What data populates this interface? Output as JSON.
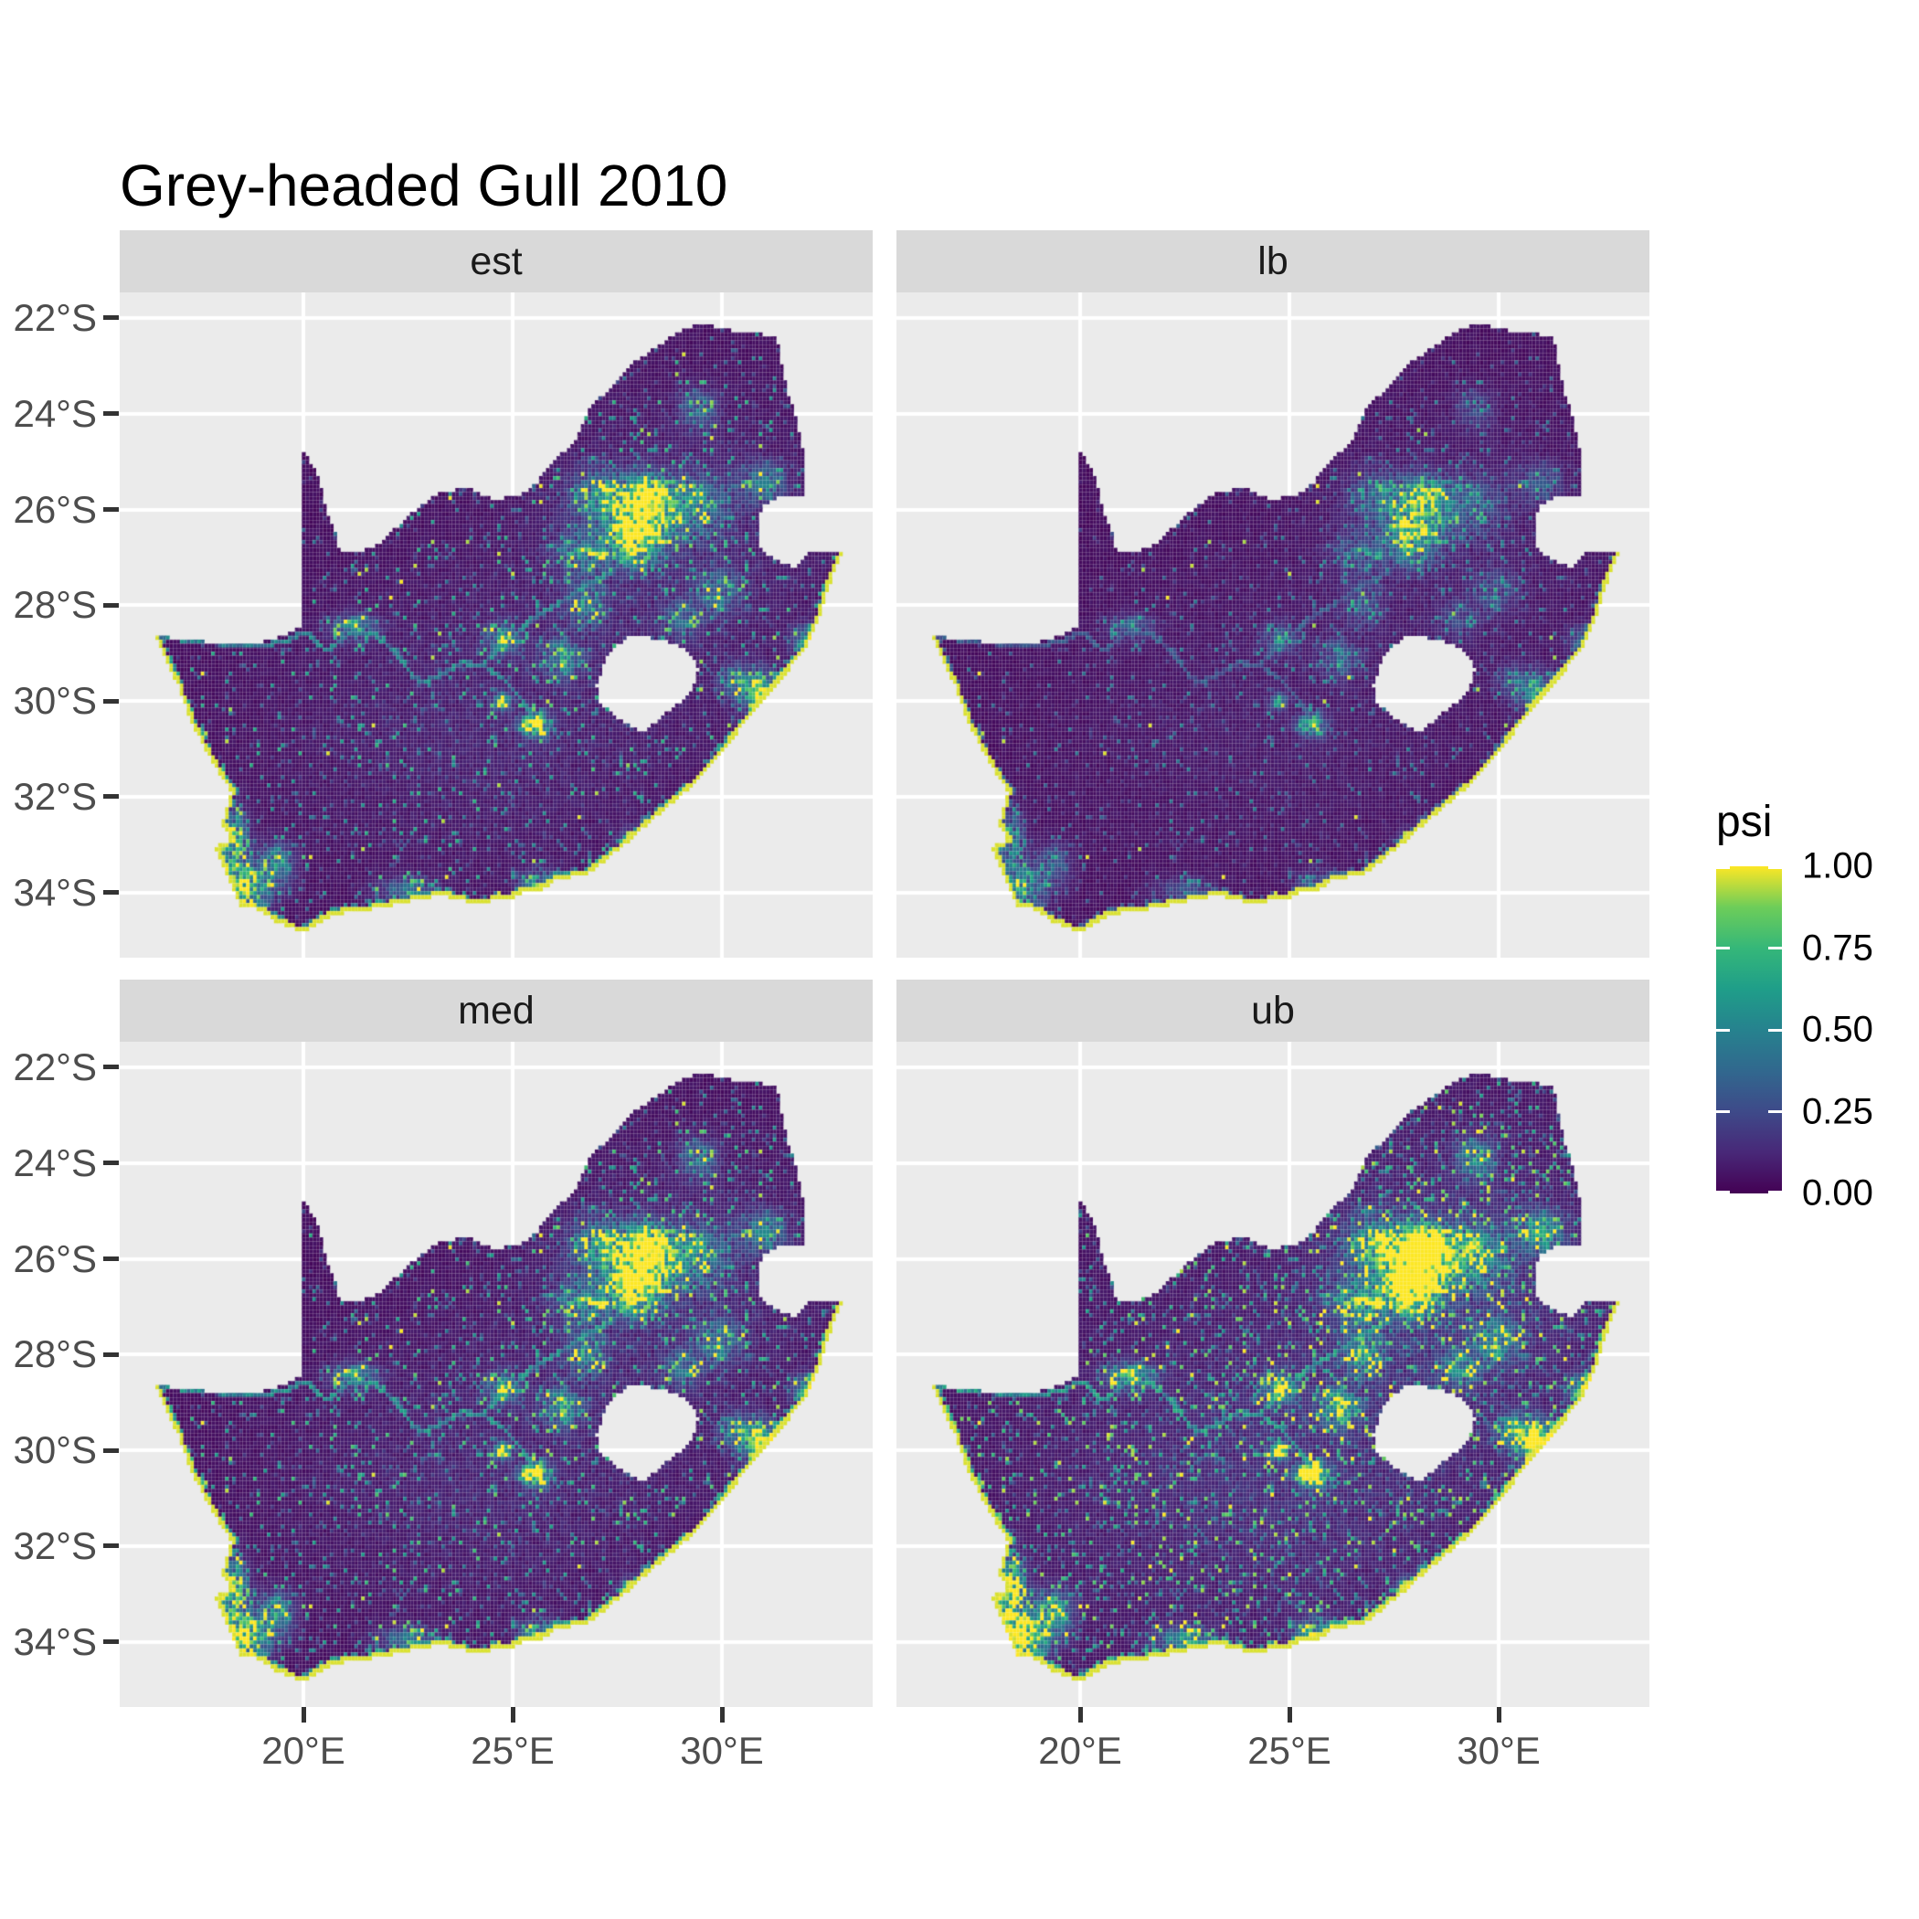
{
  "title": "Grey-headed Gull 2010",
  "facets": [
    {
      "id": "est",
      "label": "est"
    },
    {
      "id": "lb",
      "label": "lb"
    },
    {
      "id": "med",
      "label": "med"
    },
    {
      "id": "ub",
      "label": "ub"
    }
  ],
  "axes": {
    "x": {
      "ticks": [
        {
          "lon": 20,
          "label": "20°E"
        },
        {
          "lon": 25,
          "label": "25°E"
        },
        {
          "lon": 30,
          "label": "30°E"
        }
      ]
    },
    "y": {
      "ticks": [
        {
          "lat": -22,
          "label": "22°S"
        },
        {
          "lat": -24,
          "label": "24°S"
        },
        {
          "lat": -26,
          "label": "26°S"
        },
        {
          "lat": -28,
          "label": "28°S"
        },
        {
          "lat": -30,
          "label": "30°S"
        },
        {
          "lat": -32,
          "label": "32°S"
        },
        {
          "lat": -34,
          "label": "34°S"
        }
      ]
    }
  },
  "legend": {
    "title": "psi",
    "breaks": [
      {
        "value": 1.0,
        "label": "1.00"
      },
      {
        "value": 0.75,
        "label": "0.75"
      },
      {
        "value": 0.5,
        "label": "0.50"
      },
      {
        "value": 0.25,
        "label": "0.25"
      },
      {
        "value": 0.0,
        "label": "0.00"
      }
    ]
  },
  "colors": {
    "background": "#ffffff",
    "panel_background": "#ebebeb",
    "strip_background": "#d9d9d9",
    "gridline": "#ffffff",
    "axis_text": "#4d4d4d",
    "tick_mark": "#333333",
    "title_text": "#000000"
  },
  "chart_data": {
    "type": "heatmap",
    "subtype": "faceted-raster-map",
    "title": "Grey-headed Gull 2010",
    "region": "South Africa",
    "variable": "psi",
    "value_range": [
      0,
      1
    ],
    "facet_values": [
      "est",
      "lb",
      "med",
      "ub"
    ],
    "x_ticks_lon": [
      20,
      25,
      30
    ],
    "y_ticks_lat": [
      -22,
      -24,
      -26,
      -28,
      -30,
      -32,
      -34
    ],
    "lon_range": [
      15.61,
      33.64
    ],
    "lat_range": [
      -35.36,
      -21.47
    ],
    "legend_breaks": [
      0.0,
      0.25,
      0.5,
      0.75,
      1.0
    ],
    "colormap": "viridis",
    "colormap_stops": [
      {
        "t": 0.0,
        "c": "#440154"
      },
      {
        "t": 0.125,
        "c": "#482878"
      },
      {
        "t": 0.25,
        "c": "#3e4a89"
      },
      {
        "t": 0.375,
        "c": "#31688e"
      },
      {
        "t": 0.5,
        "c": "#26828e"
      },
      {
        "t": 0.625,
        "c": "#1f9e89"
      },
      {
        "t": 0.75,
        "c": "#35b779"
      },
      {
        "t": 0.875,
        "c": "#6dcd59"
      },
      {
        "t": 1.0,
        "c": "#fde725"
      }
    ],
    "grid": {
      "cell_deg": 0.08333,
      "lon_min": 16.38,
      "lon_max": 33.0,
      "lat_south": -35.0,
      "lat_north": -22.05
    },
    "outline": [
      [
        16.45,
        -28.63
      ],
      [
        17.2,
        -28.72
      ],
      [
        17.9,
        -28.78
      ],
      [
        18.6,
        -28.84
      ],
      [
        19.3,
        -28.72
      ],
      [
        19.98,
        -28.43
      ],
      [
        19.98,
        -24.77
      ],
      [
        20.3,
        -25.2
      ],
      [
        20.55,
        -26.0
      ],
      [
        20.8,
        -26.6
      ],
      [
        20.85,
        -26.9
      ],
      [
        21.4,
        -26.88
      ],
      [
        21.9,
        -26.67
      ],
      [
        22.3,
        -26.3
      ],
      [
        22.75,
        -25.95
      ],
      [
        23.25,
        -25.65
      ],
      [
        23.9,
        -25.55
      ],
      [
        24.55,
        -25.78
      ],
      [
        25.1,
        -25.73
      ],
      [
        25.55,
        -25.48
      ],
      [
        26.0,
        -24.95
      ],
      [
        26.45,
        -24.63
      ],
      [
        26.85,
        -23.9
      ],
      [
        27.35,
        -23.42
      ],
      [
        27.95,
        -22.9
      ],
      [
        28.55,
        -22.55
      ],
      [
        29.1,
        -22.2
      ],
      [
        29.55,
        -22.13
      ],
      [
        30.1,
        -22.25
      ],
      [
        30.7,
        -22.3
      ],
      [
        31.3,
        -22.41
      ],
      [
        31.55,
        -23.5
      ],
      [
        31.8,
        -24.2
      ],
      [
        31.97,
        -24.9
      ],
      [
        31.97,
        -25.75
      ],
      [
        31.3,
        -25.75
      ],
      [
        30.95,
        -25.95
      ],
      [
        30.85,
        -26.35
      ],
      [
        30.9,
        -26.78
      ],
      [
        31.25,
        -27.05
      ],
      [
        31.75,
        -27.2
      ],
      [
        32.1,
        -26.9
      ],
      [
        32.89,
        -26.86
      ],
      [
        32.55,
        -27.6
      ],
      [
        32.3,
        -28.3
      ],
      [
        32.0,
        -28.9
      ],
      [
        31.4,
        -29.55
      ],
      [
        30.85,
        -30.1
      ],
      [
        30.15,
        -30.9
      ],
      [
        29.3,
        -31.75
      ],
      [
        28.5,
        -32.35
      ],
      [
        27.6,
        -33.05
      ],
      [
        26.8,
        -33.6
      ],
      [
        26.0,
        -33.75
      ],
      [
        25.65,
        -33.95
      ],
      [
        25.3,
        -33.95
      ],
      [
        24.9,
        -34.15
      ],
      [
        24.0,
        -34.2
      ],
      [
        23.3,
        -34.05
      ],
      [
        22.4,
        -34.2
      ],
      [
        21.6,
        -34.35
      ],
      [
        20.7,
        -34.45
      ],
      [
        20.0,
        -34.82
      ],
      [
        19.35,
        -34.6
      ],
      [
        18.95,
        -34.35
      ],
      [
        18.5,
        -34.3
      ],
      [
        18.3,
        -33.9
      ],
      [
        18.05,
        -33.35
      ],
      [
        17.9,
        -33.05
      ],
      [
        18.28,
        -32.88
      ],
      [
        18.05,
        -32.55
      ],
      [
        18.28,
        -31.9
      ],
      [
        17.85,
        -31.3
      ],
      [
        17.35,
        -30.5
      ],
      [
        17.0,
        -29.65
      ],
      [
        16.7,
        -29.15
      ]
    ],
    "coastal_from": 42,
    "lesotho_hole": [
      [
        27.0,
        -29.65
      ],
      [
        27.3,
        -28.95
      ],
      [
        27.8,
        -28.63
      ],
      [
        28.6,
        -28.7
      ],
      [
        29.15,
        -28.93
      ],
      [
        29.45,
        -29.3
      ],
      [
        29.25,
        -29.85
      ],
      [
        28.75,
        -30.2
      ],
      [
        28.1,
        -30.65
      ],
      [
        27.55,
        -30.4
      ],
      [
        27.05,
        -30.0
      ]
    ],
    "rivers": [
      [
        [
          16.5,
          -28.62
        ],
        [
          17.3,
          -28.74
        ],
        [
          18.1,
          -28.8
        ],
        [
          18.9,
          -28.86
        ],
        [
          19.6,
          -28.74
        ],
        [
          20.05,
          -28.55
        ],
        [
          20.55,
          -28.95
        ],
        [
          21.1,
          -28.6
        ],
        [
          21.7,
          -28.6
        ],
        [
          22.2,
          -29.0
        ],
        [
          22.6,
          -29.45
        ],
        [
          22.85,
          -29.6
        ],
        [
          23.3,
          -29.45
        ],
        [
          23.8,
          -29.2
        ],
        [
          24.3,
          -29.25
        ],
        [
          24.8,
          -29.55
        ],
        [
          25.2,
          -29.95
        ],
        [
          25.5,
          -30.35
        ],
        [
          25.6,
          -30.6
        ]
      ],
      [
        [
          24.3,
          -29.2
        ],
        [
          24.9,
          -28.75
        ],
        [
          25.5,
          -28.25
        ],
        [
          26.1,
          -27.95
        ],
        [
          26.75,
          -27.6
        ],
        [
          27.35,
          -27.3
        ],
        [
          27.9,
          -26.85
        ]
      ]
    ],
    "hotspots": [
      [
        28.0,
        -26.15,
        0.5,
        0.4,
        1.5
      ],
      [
        28.25,
        -25.72,
        0.32,
        0.26,
        1.1
      ],
      [
        27.9,
        -26.75,
        0.38,
        0.3,
        0.9
      ],
      [
        27.1,
        -25.65,
        0.5,
        0.35,
        0.55
      ],
      [
        29.25,
        -25.9,
        0.55,
        0.4,
        0.6
      ],
      [
        26.65,
        -26.9,
        0.4,
        0.32,
        0.55
      ],
      [
        26.75,
        -28.0,
        0.3,
        0.28,
        0.5
      ],
      [
        26.2,
        -29.1,
        0.28,
        0.24,
        0.75
      ],
      [
        24.75,
        -28.72,
        0.25,
        0.22,
        0.65
      ],
      [
        25.52,
        -30.5,
        0.22,
        0.15,
        1.6
      ],
      [
        24.75,
        -30.0,
        0.15,
        0.12,
        0.9
      ],
      [
        18.6,
        -33.9,
        0.4,
        0.3,
        1.1
      ],
      [
        18.35,
        -32.95,
        0.22,
        0.45,
        0.9
      ],
      [
        19.35,
        -33.4,
        0.3,
        0.3,
        0.6
      ],
      [
        30.9,
        -29.85,
        0.3,
        0.3,
        0.9
      ],
      [
        30.35,
        -29.6,
        0.25,
        0.22,
        0.6
      ],
      [
        32.0,
        -28.75,
        0.22,
        0.22,
        0.6
      ],
      [
        25.6,
        -33.9,
        0.28,
        0.22,
        0.7
      ],
      [
        27.85,
        -33.0,
        0.22,
        0.2,
        0.6
      ],
      [
        22.45,
        -33.95,
        0.45,
        0.18,
        0.5
      ],
      [
        21.2,
        -28.45,
        0.35,
        0.18,
        0.6
      ],
      [
        31.0,
        -25.45,
        0.35,
        0.28,
        0.55
      ],
      [
        29.45,
        -23.9,
        0.3,
        0.28,
        0.45
      ],
      [
        29.95,
        -27.7,
        0.35,
        0.3,
        0.45
      ],
      [
        29.1,
        -28.25,
        0.3,
        0.25,
        0.4
      ],
      [
        24.5,
        -30.5,
        3.5,
        2.2,
        0.1
      ],
      [
        29.0,
        -26.5,
        2.5,
        2.0,
        0.12
      ]
    ],
    "facet_params": {
      "est": {
        "gain": 1.0,
        "speckle": 0.025
      },
      "lb": {
        "gain": 0.62,
        "speckle": 0.005
      },
      "med": {
        "gain": 1.1,
        "speckle": 0.04
      },
      "ub": {
        "gain": 1.42,
        "speckle": 0.1
      }
    }
  }
}
